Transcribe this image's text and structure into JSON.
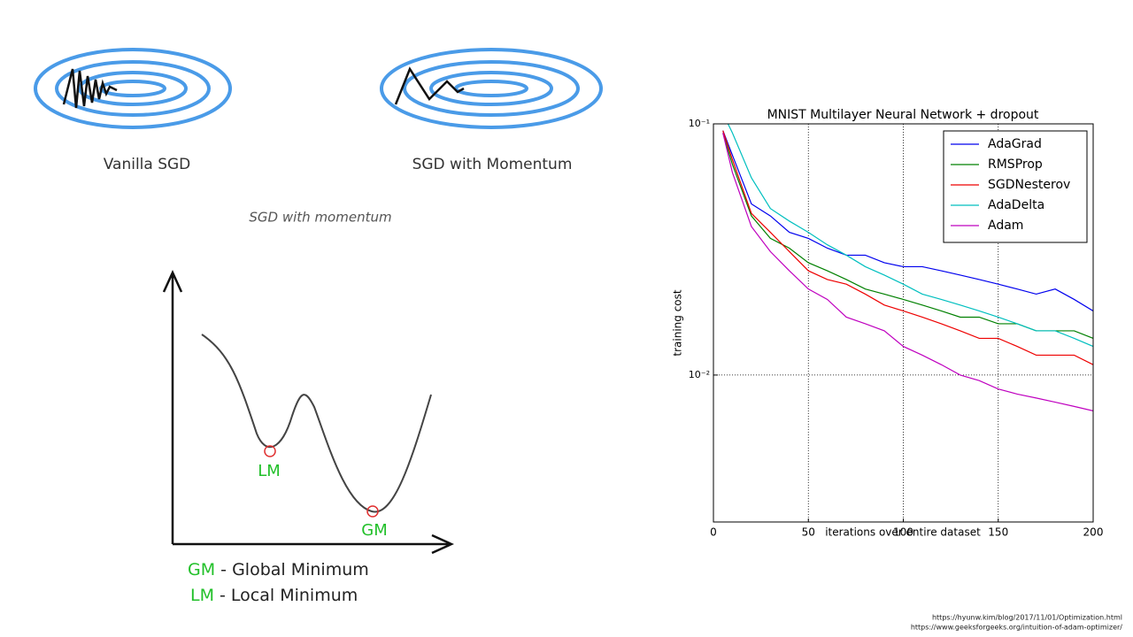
{
  "diagrams": {
    "vanilla_label": "Vanilla SGD",
    "momentum_label": "SGD with Momentum",
    "caption": "SGD with momentum",
    "lm": "LM",
    "gm": "GM",
    "legend": [
      {
        "abbr": "GM",
        "text": "- Global Minimum"
      },
      {
        "abbr": "LM",
        "text": "- Local Minimum"
      }
    ]
  },
  "sources": [
    "https://hyunw.kim/blog/2017/11/01/Optimization.html",
    "https://www.geeksforgeeks.org/intuition-of-adam-optimizer/"
  ],
  "chart_data": {
    "type": "line",
    "title": "MNIST Multilayer Neural Network + dropout",
    "x_label": "iterations over entire dataset",
    "y_label": "training cost",
    "log_y": true,
    "grid": true,
    "legend": "upper right",
    "x": [
      5,
      10,
      20,
      30,
      40,
      50,
      60,
      70,
      80,
      90,
      100,
      110,
      120,
      130,
      140,
      150,
      160,
      170,
      180,
      190,
      200
    ],
    "series": [
      {
        "name": "AdaGrad",
        "color": "#0000ee",
        "values": [
          0.094,
          0.075,
          0.048,
          0.043,
          0.037,
          0.035,
          0.032,
          0.03,
          0.03,
          0.028,
          0.027,
          0.027,
          0.026,
          0.025,
          0.024,
          0.023,
          0.022,
          0.021,
          0.022,
          0.02,
          0.018
        ]
      },
      {
        "name": "RMSProp",
        "color": "#008000",
        "values": [
          0.092,
          0.069,
          0.043,
          0.035,
          0.032,
          0.028,
          0.026,
          0.024,
          0.022,
          0.021,
          0.02,
          0.019,
          0.018,
          0.017,
          0.017,
          0.016,
          0.016,
          0.015,
          0.015,
          0.015,
          0.014
        ]
      },
      {
        "name": "SGDNesterov",
        "color": "#ee0000",
        "values": [
          0.094,
          0.072,
          0.044,
          0.037,
          0.031,
          0.026,
          0.024,
          0.023,
          0.021,
          0.019,
          0.018,
          0.017,
          0.016,
          0.015,
          0.014,
          0.014,
          0.013,
          0.012,
          0.012,
          0.012,
          0.011
        ]
      },
      {
        "name": "AdaDelta",
        "color": "#00bfbf",
        "values": [
          0.11,
          0.092,
          0.061,
          0.046,
          0.041,
          0.037,
          0.033,
          0.03,
          0.027,
          0.025,
          0.023,
          0.021,
          0.02,
          0.019,
          0.018,
          0.017,
          0.016,
          0.015,
          0.015,
          0.014,
          0.013
        ]
      },
      {
        "name": "Adam",
        "color": "#bf00bf",
        "values": [
          0.092,
          0.064,
          0.039,
          0.031,
          0.026,
          0.022,
          0.02,
          0.017,
          0.016,
          0.015,
          0.013,
          0.012,
          0.011,
          0.01,
          0.0095,
          0.0088,
          0.0084,
          0.0081,
          0.0078,
          0.0075,
          0.0072
        ]
      }
    ],
    "xlim": [
      0,
      200
    ],
    "ylim": [
      0.0026,
      0.1
    ],
    "xticks": [
      0,
      50,
      100,
      150,
      200
    ],
    "yticks": [
      {
        "value": 0.1,
        "label": "10⁻¹"
      },
      {
        "value": 0.01,
        "label": "10⁻²"
      }
    ]
  }
}
